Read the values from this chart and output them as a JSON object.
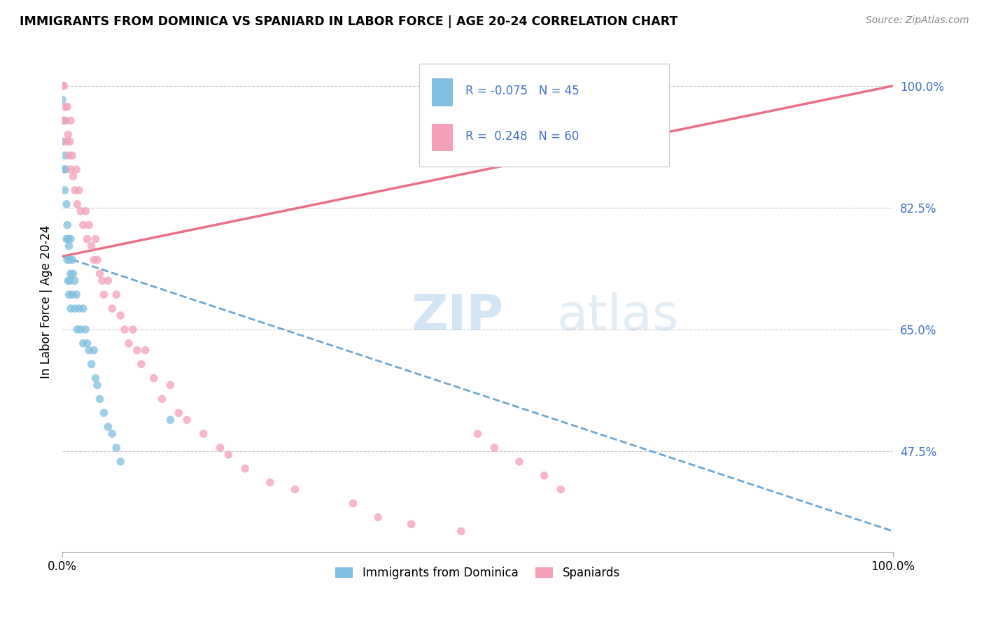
{
  "title": "IMMIGRANTS FROM DOMINICA VS SPANIARD IN LABOR FORCE | AGE 20-24 CORRELATION CHART",
  "source": "Source: ZipAtlas.com",
  "ylabel": "In Labor Force | Age 20-24",
  "xlim": [
    0.0,
    1.0
  ],
  "ylim": [
    0.33,
    1.05
  ],
  "ytick_vals": [
    0.475,
    0.65,
    0.825,
    1.0
  ],
  "ytick_labels": [
    "47.5%",
    "65.0%",
    "82.5%",
    "100.0%"
  ],
  "xtick_vals": [
    0.0,
    1.0
  ],
  "xtick_labels": [
    "0.0%",
    "100.0%"
  ],
  "blue_color": "#7fbfdf",
  "pink_color": "#f4a0b8",
  "blue_line_color": "#5599cc",
  "pink_line_color": "#e8607a",
  "label_color": "#4472c4",
  "background_color": "#ffffff",
  "blue_r": -0.075,
  "blue_n": 45,
  "pink_r": 0.248,
  "pink_n": 60,
  "blue_line_x0": 0.0,
  "blue_line_y0": 0.755,
  "blue_line_x1": 1.0,
  "blue_line_y1": 0.36,
  "pink_line_x0": 0.0,
  "pink_line_y0": 0.755,
  "pink_line_x1": 1.0,
  "pink_line_y1": 1.0,
  "blue_x": [
    0.0,
    0.0,
    0.002,
    0.002,
    0.003,
    0.003,
    0.004,
    0.005,
    0.005,
    0.006,
    0.006,
    0.007,
    0.007,
    0.008,
    0.008,
    0.009,
    0.009,
    0.01,
    0.01,
    0.01,
    0.012,
    0.012,
    0.013,
    0.015,
    0.015,
    0.017,
    0.018,
    0.02,
    0.022,
    0.025,
    0.025,
    0.028,
    0.03,
    0.032,
    0.035,
    0.038,
    0.04,
    0.042,
    0.045,
    0.05,
    0.055,
    0.06,
    0.065,
    0.07,
    0.13
  ],
  "blue_y": [
    0.98,
    0.92,
    0.95,
    0.88,
    0.9,
    0.85,
    0.88,
    0.83,
    0.78,
    0.8,
    0.75,
    0.78,
    0.72,
    0.77,
    0.7,
    0.75,
    0.72,
    0.78,
    0.73,
    0.68,
    0.75,
    0.7,
    0.73,
    0.72,
    0.68,
    0.7,
    0.65,
    0.68,
    0.65,
    0.68,
    0.63,
    0.65,
    0.63,
    0.62,
    0.6,
    0.62,
    0.58,
    0.57,
    0.55,
    0.53,
    0.51,
    0.5,
    0.48,
    0.46,
    0.52
  ],
  "pink_x": [
    0.0,
    0.0,
    0.002,
    0.003,
    0.004,
    0.005,
    0.006,
    0.007,
    0.008,
    0.009,
    0.01,
    0.01,
    0.012,
    0.013,
    0.015,
    0.017,
    0.018,
    0.02,
    0.022,
    0.025,
    0.028,
    0.03,
    0.032,
    0.035,
    0.038,
    0.04,
    0.042,
    0.045,
    0.048,
    0.05,
    0.055,
    0.06,
    0.065,
    0.07,
    0.075,
    0.08,
    0.085,
    0.09,
    0.095,
    0.1,
    0.11,
    0.12,
    0.13,
    0.14,
    0.15,
    0.17,
    0.19,
    0.2,
    0.22,
    0.25,
    0.28,
    0.35,
    0.38,
    0.42,
    0.48,
    0.5,
    0.52,
    0.55,
    0.58,
    0.6
  ],
  "pink_y": [
    1.0,
    0.95,
    1.0,
    0.97,
    0.95,
    0.92,
    0.97,
    0.93,
    0.9,
    0.92,
    0.95,
    0.88,
    0.9,
    0.87,
    0.85,
    0.88,
    0.83,
    0.85,
    0.82,
    0.8,
    0.82,
    0.78,
    0.8,
    0.77,
    0.75,
    0.78,
    0.75,
    0.73,
    0.72,
    0.7,
    0.72,
    0.68,
    0.7,
    0.67,
    0.65,
    0.63,
    0.65,
    0.62,
    0.6,
    0.62,
    0.58,
    0.55,
    0.57,
    0.53,
    0.52,
    0.5,
    0.48,
    0.47,
    0.45,
    0.43,
    0.42,
    0.4,
    0.38,
    0.37,
    0.36,
    0.5,
    0.48,
    0.46,
    0.44,
    0.42
  ]
}
